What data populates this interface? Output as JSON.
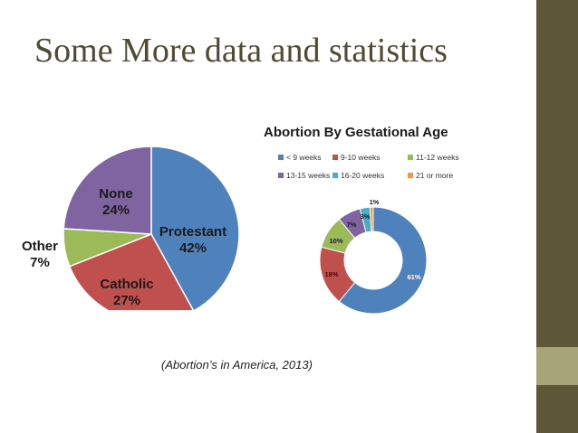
{
  "slide": {
    "title": "Some More data and statistics",
    "citation": "(Abortion’s in America, 2013)",
    "accent": "#5e5838",
    "accent_light": "#a8a479"
  },
  "chart_data": [
    {
      "type": "pie",
      "title": "",
      "slices": [
        {
          "label": "Protestant",
          "value": 42,
          "value_label": "42%",
          "color": "#4f81bd"
        },
        {
          "label": "Catholic",
          "value": 27,
          "value_label": "27%",
          "color": "#c0504d"
        },
        {
          "label": "Other",
          "value": 7,
          "value_label": "7%",
          "color": "#9bbb59"
        },
        {
          "label": "None",
          "value": 24,
          "value_label": "24%",
          "color": "#8064a2"
        }
      ]
    },
    {
      "type": "pie",
      "title": "Abortion By Gestational Age",
      "legend_position": "top",
      "slices": [
        {
          "label": "< 9 weeks",
          "value": 61,
          "value_label": "61%",
          "color": "#4f81bd"
        },
        {
          "label": "9-10 weeks",
          "value": 18,
          "value_label": "18%",
          "color": "#c0504d"
        },
        {
          "label": "11-12 weeks",
          "value": 10,
          "value_label": "10%",
          "color": "#9bbb59"
        },
        {
          "label": "13-15 weeks",
          "value": 7,
          "value_label": "7%",
          "color": "#8064a2"
        },
        {
          "label": "16-20 weeks",
          "value": 3,
          "value_label": "3%",
          "color": "#4bacc6"
        },
        {
          "label": "21 or more",
          "value": 1,
          "value_label": "1%",
          "color": "#f79646"
        }
      ]
    }
  ]
}
